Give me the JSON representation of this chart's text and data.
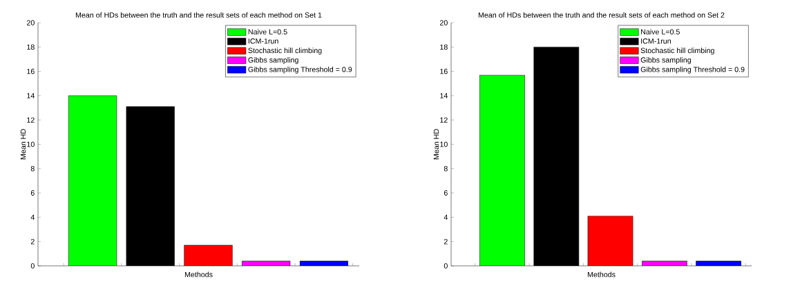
{
  "chart_data": [
    {
      "type": "bar",
      "title": "Mean of HDs between the truth and the result sets of each method on Set 1",
      "xlabel": "Methods",
      "ylabel": "Mean HD",
      "categories": [
        null
      ],
      "series": [
        {
          "name": "Naive L=0.5",
          "color": "#00ff00",
          "values": [
            14
          ]
        },
        {
          "name": "ICM-1run",
          "color": "#000000",
          "values": [
            13.1
          ]
        },
        {
          "name": "Stochastic hill climbing",
          "color": "#ff0000",
          "values": [
            1.7
          ]
        },
        {
          "name": "Gibbs sampling",
          "color": "#ff00ff",
          "values": [
            0.4
          ]
        },
        {
          "name": "Gibbs sampling Threshold = 0.9",
          "color": "#0000ff",
          "values": [
            0.4
          ]
        }
      ],
      "ylim": [
        0,
        20
      ],
      "yticks": [
        0,
        2,
        4,
        6,
        8,
        10,
        12,
        14,
        16,
        18,
        20
      ],
      "legend": "top right",
      "tick_labels": "y"
    },
    {
      "type": "bar",
      "title": "Mean of HDs between the truth and the result sets of each method on Set 2",
      "xlabel": "Methods",
      "ylabel": "Mean HD",
      "categories": [
        null
      ],
      "series": [
        {
          "name": "Naive L=0.5",
          "color": "#00ff00",
          "values": [
            15.7
          ]
        },
        {
          "name": "ICM-1run",
          "color": "#000000",
          "values": [
            18
          ]
        },
        {
          "name": "Stochastic hill climbing",
          "color": "#ff0000",
          "values": [
            4.1
          ]
        },
        {
          "name": "Gibbs sampling",
          "color": "#ff00ff",
          "values": [
            0.4
          ]
        },
        {
          "name": "Gibbs sampling Threshold = 0.9",
          "color": "#0000ff",
          "values": [
            0.4
          ]
        }
      ],
      "ylim": [
        0,
        20
      ],
      "yticks": [
        0,
        2,
        4,
        6,
        8,
        10,
        12,
        14,
        16,
        18,
        20
      ],
      "legend": "top right",
      "tick_labels": "y"
    }
  ]
}
